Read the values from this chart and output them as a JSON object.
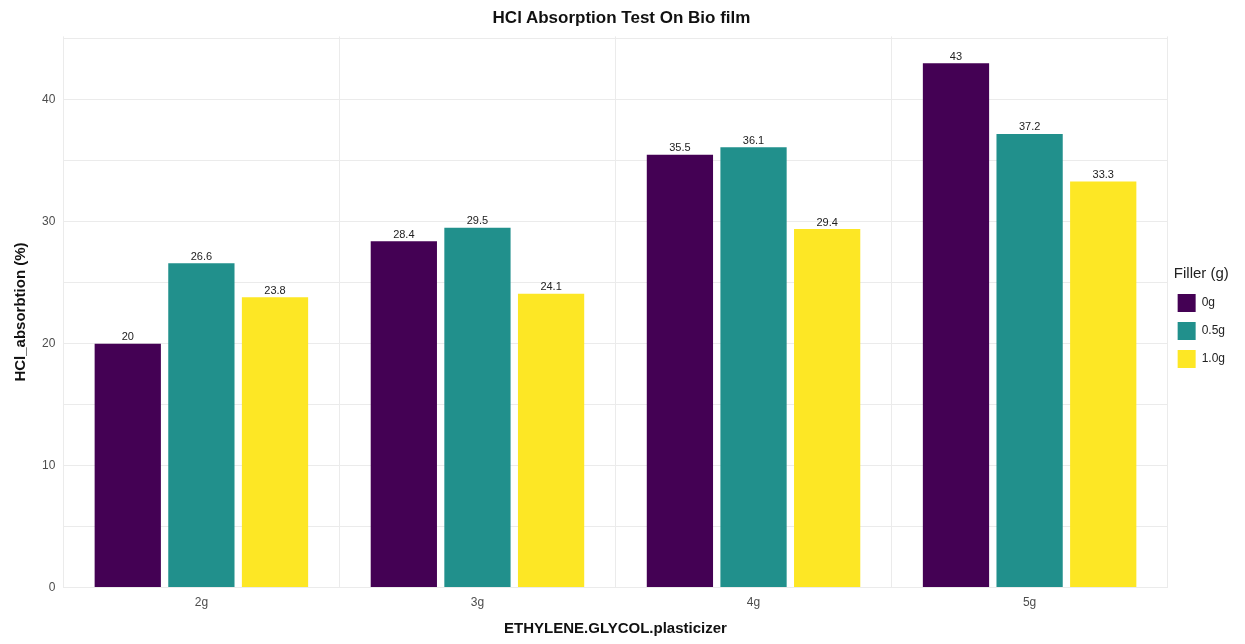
{
  "chart_data": {
    "type": "bar",
    "title": "HCl Absorption Test On Bio film",
    "xlabel": "ETHYLENE.GLYCOL.plasticizer",
    "ylabel": "HCl_absorbtion (%)",
    "legend_title": "Filler (g)",
    "categories": [
      "2g",
      "3g",
      "4g",
      "5g"
    ],
    "series": [
      {
        "name": "0g",
        "color": "#440154",
        "values": [
          20,
          28.4,
          35.5,
          43
        ]
      },
      {
        "name": "0.5g",
        "color": "#21908c",
        "values": [
          26.6,
          29.5,
          36.1,
          37.2
        ]
      },
      {
        "name": "1.0g",
        "color": "#fde725",
        "values": [
          23.8,
          24.1,
          29.4,
          33.3
        ]
      }
    ],
    "ylim": [
      0,
      45.2
    ],
    "yticks": [
      0,
      {
        "value": 5,
        "label": null
      },
      10,
      {
        "value": 15,
        "label": null
      },
      20,
      {
        "value": 25,
        "label": null
      },
      30,
      {
        "value": 35,
        "label": null
      },
      40,
      {
        "value": 45,
        "label": null
      }
    ],
    "grid": true,
    "legend": "right",
    "data_labels": true
  }
}
